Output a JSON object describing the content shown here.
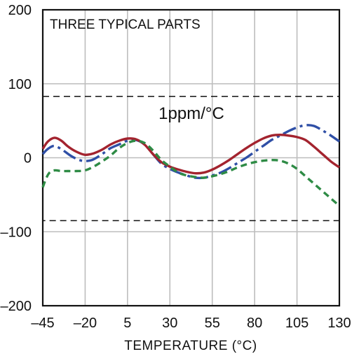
{
  "chart_data": {
    "type": "line",
    "title": "THREE TYPICAL PARTS",
    "xlabel": "TEMPERATURE (°C)",
    "ylabel": "",
    "xlim": [
      -45,
      130
    ],
    "ylim": [
      -200,
      200
    ],
    "xticks": [
      "–45",
      "–20",
      "5",
      "30",
      "55",
      "80",
      "105",
      "130"
    ],
    "xtick_values": [
      -45,
      -20,
      5,
      30,
      55,
      80,
      105,
      130
    ],
    "yticks": [
      "200",
      "100",
      "0",
      "–100",
      "–200"
    ],
    "ytick_values": [
      200,
      100,
      0,
      -100,
      -200
    ],
    "grid": true,
    "legend": "none",
    "annotation": {
      "label": "1ppm/°C",
      "box": {
        "x": [
          -45,
          130
        ],
        "y": [
          -85,
          83
        ]
      }
    },
    "series": [
      {
        "color": "#2f4fa6",
        "style": "dash-dot",
        "x": [
          -45,
          -42,
          -38,
          -33,
          -28,
          -22,
          -16,
          -10,
          -5,
          0,
          5,
          10,
          15,
          20,
          25,
          30,
          35,
          40,
          45,
          50,
          55,
          60,
          65,
          70,
          75,
          80,
          85,
          90,
          95,
          100,
          105,
          110,
          115,
          120,
          125,
          130
        ],
        "y": [
          5,
          12,
          16,
          10,
          2,
          -4,
          -3,
          5,
          13,
          18,
          23,
          24,
          18,
          5,
          -8,
          -15,
          -20,
          -24,
          -27,
          -27,
          -24,
          -20,
          -14,
          -7,
          0,
          8,
          16,
          24,
          30,
          36,
          41,
          44,
          43,
          37,
          30,
          22
        ]
      },
      {
        "color": "#a3232e",
        "style": "solid",
        "x": [
          -45,
          -42,
          -38,
          -34,
          -30,
          -25,
          -20,
          -15,
          -10,
          -5,
          0,
          5,
          10,
          15,
          20,
          25,
          30,
          35,
          40,
          45,
          50,
          55,
          60,
          65,
          70,
          75,
          80,
          85,
          90,
          95,
          100,
          105,
          110,
          115,
          120,
          125,
          130
        ],
        "y": [
          12,
          22,
          27,
          23,
          15,
          8,
          4,
          6,
          11,
          18,
          23,
          26,
          25,
          18,
          5,
          -6,
          -12,
          -16,
          -19,
          -21,
          -20,
          -16,
          -10,
          -3,
          5,
          13,
          20,
          26,
          30,
          31,
          30,
          28,
          24,
          15,
          5,
          -5,
          -13
        ]
      },
      {
        "color": "#2e8b45",
        "style": "dashed",
        "x": [
          -45,
          -43,
          -41,
          -38,
          -34,
          -30,
          -25,
          -20,
          -15,
          -10,
          -5,
          0,
          5,
          10,
          15,
          20,
          25,
          30,
          35,
          40,
          45,
          50,
          55,
          60,
          65,
          70,
          75,
          80,
          85,
          90,
          95,
          100,
          105,
          110,
          115,
          120,
          125,
          130
        ],
        "y": [
          -40,
          -28,
          -20,
          -17,
          -18,
          -18,
          -18,
          -17,
          -12,
          -5,
          3,
          13,
          20,
          23,
          20,
          10,
          -3,
          -12,
          -20,
          -24,
          -26,
          -27,
          -25,
          -22,
          -18,
          -13,
          -9,
          -6,
          -4,
          -3,
          -4,
          -8,
          -15,
          -25,
          -35,
          -45,
          -55,
          -65
        ]
      }
    ]
  }
}
